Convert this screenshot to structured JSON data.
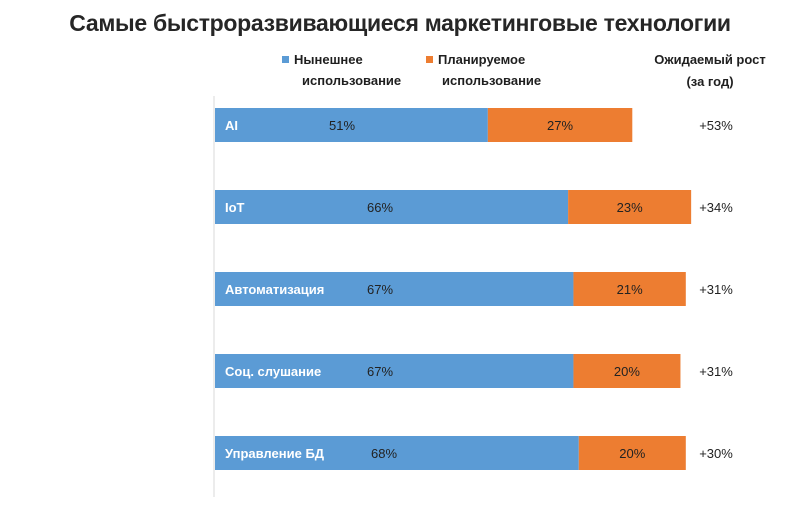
{
  "chart_data": {
    "type": "bar",
    "orientation": "horizontal",
    "stacked": true,
    "title": "Самые быстроразвивающиеся маркетинговые технологии",
    "categories": [
      "AI",
      "IoT",
      "Автоматизация",
      "Соц. слушание",
      "Управление БД"
    ],
    "series": [
      {
        "name": "Нынешнее использование",
        "color": "#5b9bd5",
        "values": [
          51,
          66,
          67,
          67,
          68
        ],
        "labels": [
          "51%",
          "66%",
          "67%",
          "67%",
          "68%"
        ]
      },
      {
        "name": "Планируемое использование",
        "color": "#ed7d31",
        "values": [
          27,
          23,
          21,
          20,
          20
        ],
        "labels": [
          "27%",
          "23%",
          "21%",
          "20%",
          "20%"
        ]
      }
    ],
    "growth_header": "Ожидаемый рост (за год)",
    "growth_header_lines": [
      "Ожидаемый рост",
      "(за год)"
    ],
    "growth": [
      "+53%",
      "+34%",
      "+31%",
      "+31%",
      "+30%"
    ],
    "legend_position": "top",
    "grid": false
  },
  "legend": {
    "current_lines": [
      "Нынешнее",
      "использование"
    ],
    "planned_lines": [
      "Планируемое",
      "использование"
    ]
  }
}
